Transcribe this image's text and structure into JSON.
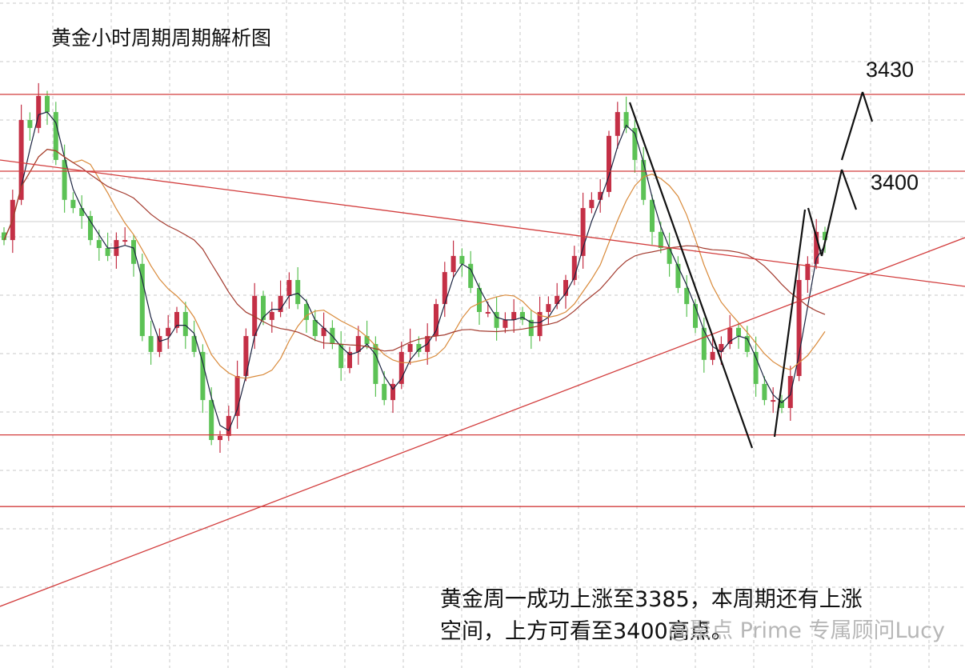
{
  "chart_data": {
    "type": "candlestick",
    "title": "黄金小时周期周期解析图",
    "closes": [
      3373.1,
      3388.8,
      3420.0,
      3416.9,
      3429.4,
      3423.1,
      3404.4,
      3388.8,
      3385.6,
      3382.5,
      3373.1,
      3370.0,
      3366.9,
      3373.1,
      3373.1,
      3363.8,
      3335.6,
      3329.4,
      3335.6,
      3338.8,
      3345.0,
      3335.6,
      3329.4,
      3310.6,
      3295.0,
      3296.6,
      3304.4,
      3320.0,
      3335.6,
      3351.3,
      3341.9,
      3345.0,
      3351.3,
      3357.5,
      3348.1,
      3341.9,
      3335.6,
      3338.8,
      3332.5,
      3323.1,
      3329.4,
      3335.6,
      3332.5,
      3316.9,
      3310.6,
      3316.9,
      3329.4,
      3332.5,
      3329.4,
      3335.6,
      3348.1,
      3360.6,
      3366.9,
      3363.8,
      3354.4,
      3345.0,
      3345.0,
      3338.8,
      3341.9,
      3345.0,
      3341.9,
      3335.6,
      3345.0,
      3348.1,
      3351.3,
      3357.5,
      3366.9,
      3385.6,
      3388.8,
      3391.9,
      3413.8,
      3423.1,
      3416.9,
      3404.4,
      3388.8,
      3376.3,
      3370.0,
      3363.8,
      3354.4,
      3348.1,
      3338.8,
      3326.3,
      3329.4,
      3332.5,
      3338.8,
      3335.6,
      3329.4,
      3316.9,
      3310.6,
      3310.6,
      3307.5,
      3320.0,
      3357.5,
      3363.8,
      3376.3,
      3373.1
    ],
    "horizontal_levels": [
      3430,
      3400,
      3297,
      3269
    ],
    "level_labels": [
      "3430",
      "3400"
    ],
    "moving_averages": [
      "short",
      "medium",
      "long"
    ],
    "colors": {
      "up": "#c43046",
      "down": "#5cc255",
      "level": "#d23c3c",
      "ma_short": "#1a2340",
      "ma_medium": "#d98a3a",
      "ma_long": "#a33a2e",
      "projection": "#111111"
    },
    "grid": true
  },
  "annotation": {
    "line1": "黄金周一成功上涨至3385，本周期还有上涨",
    "line2": "空间，上方可看至3400高点。"
  },
  "watermark": "@聚点 Prime 专属顾问Lucy"
}
